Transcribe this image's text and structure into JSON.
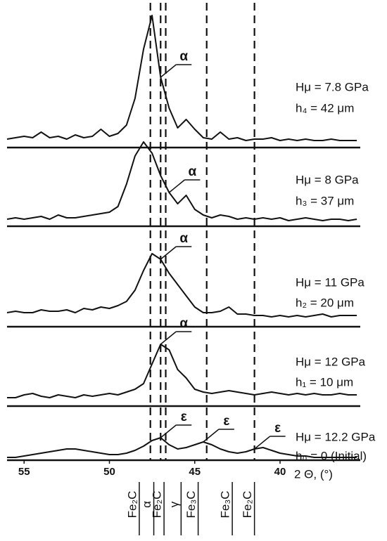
{
  "chart_data": {
    "type": "line",
    "color": "#111111",
    "x": [
      56,
      55.5,
      55,
      54.5,
      54,
      53.5,
      53,
      52.5,
      52,
      51.5,
      51,
      50.5,
      50,
      49.5,
      49,
      48.5,
      48,
      47.5,
      47,
      46.5,
      46,
      45.5,
      45,
      44.5,
      44,
      43.5,
      43,
      42.5,
      42,
      41.5,
      41,
      40.5,
      40,
      39.5,
      39,
      38.5,
      38,
      37.5,
      37,
      36.5,
      36,
      35.5
    ],
    "xlim": [
      56,
      35.3
    ],
    "xticks": [
      55,
      50,
      45,
      40
    ],
    "xlabel": "2 Θ, (°)",
    "ylim": [
      0,
      100
    ],
    "dashed_lines_x": [
      47.6,
      47.0,
      46.7,
      44.3,
      41.5
    ],
    "phase_markers": [
      {
        "label": "Fe₂C",
        "x": 48.25
      },
      {
        "label": "α",
        "x": 47.4
      },
      {
        "label": "Fe₂C",
        "x": 46.8
      },
      {
        "label": "γ",
        "x": 45.8
      },
      {
        "label": "Fe₃C",
        "x": 44.8
      },
      {
        "label": "Fe₃C",
        "x": 42.8
      },
      {
        "label": "Fe₂C",
        "x": 41.5
      }
    ],
    "panels": [
      {
        "annotation": [
          "Hμ = 7.8 GPa",
          "h₄ = 42 μm"
        ],
        "values": [
          6,
          7,
          8,
          7,
          11,
          7,
          8,
          6,
          9,
          7,
          8,
          13,
          8,
          10,
          16,
          35,
          70,
          94,
          50,
          28,
          14,
          20,
          13,
          7,
          6,
          11,
          6,
          7,
          5,
          6,
          6,
          7,
          5,
          6,
          5,
          6,
          5,
          5,
          6,
          5,
          5,
          5
        ],
        "peak_labels": [
          {
            "label": "α",
            "x": 47
          }
        ]
      },
      {
        "annotation": [
          "Hμ = 8 GPa",
          "h₃ = 37 μm"
        ],
        "values": [
          5,
          6,
          5,
          6,
          7,
          5,
          8,
          6,
          6,
          7,
          8,
          9,
          10,
          14,
          30,
          50,
          60,
          52,
          36,
          24,
          16,
          22,
          12,
          8,
          6,
          8,
          7,
          5,
          6,
          5,
          6,
          5,
          6,
          4,
          5,
          6,
          5,
          4,
          5,
          5,
          4,
          5
        ],
        "peak_labels": [
          {
            "label": "α",
            "x": 46.5
          }
        ]
      },
      {
        "annotation": [
          "Hμ = 11 GPa",
          "h₂ = 20 μm"
        ],
        "values": [
          10,
          11,
          10,
          10,
          12,
          11,
          11,
          12,
          10,
          13,
          12,
          14,
          13,
          15,
          18,
          26,
          40,
          52,
          48,
          38,
          30,
          22,
          14,
          10,
          10,
          11,
          14,
          9,
          9,
          8,
          8,
          7,
          8,
          7,
          8,
          7,
          8,
          9,
          7,
          8,
          8,
          8
        ],
        "peak_labels": [
          {
            "label": "α",
            "x": 47
          }
        ]
      },
      {
        "annotation": [
          "Hμ = 12 GPa",
          "h₁ = 10 μm"
        ],
        "values": [
          6,
          6,
          8,
          9,
          7,
          6,
          8,
          7,
          6,
          8,
          7,
          8,
          9,
          8,
          10,
          12,
          16,
          30,
          44,
          40,
          26,
          20,
          12,
          10,
          9,
          10,
          11,
          10,
          9,
          8,
          9,
          10,
          9,
          8,
          9,
          8,
          9,
          8,
          8,
          9,
          8,
          8
        ],
        "peak_labels": [
          {
            "label": "α",
            "x": 47
          }
        ]
      },
      {
        "annotation": [
          "Hμ = 12.2 GPa",
          "h₀ = 0 (Initial)"
        ],
        "values": [
          2,
          2,
          3,
          4,
          5,
          6,
          7,
          8,
          8,
          7,
          6,
          5,
          4,
          4,
          5,
          7,
          10,
          14,
          16,
          11,
          8,
          9,
          11,
          13,
          11,
          8,
          6,
          5,
          6,
          8,
          9,
          7,
          5,
          4,
          3,
          3,
          2,
          2,
          2,
          2,
          2,
          2
        ],
        "peak_labels": [
          {
            "label": "ε",
            "x": 47
          },
          {
            "label": "ε",
            "x": 44.5
          },
          {
            "label": "ε",
            "x": 41.5
          }
        ]
      }
    ]
  }
}
